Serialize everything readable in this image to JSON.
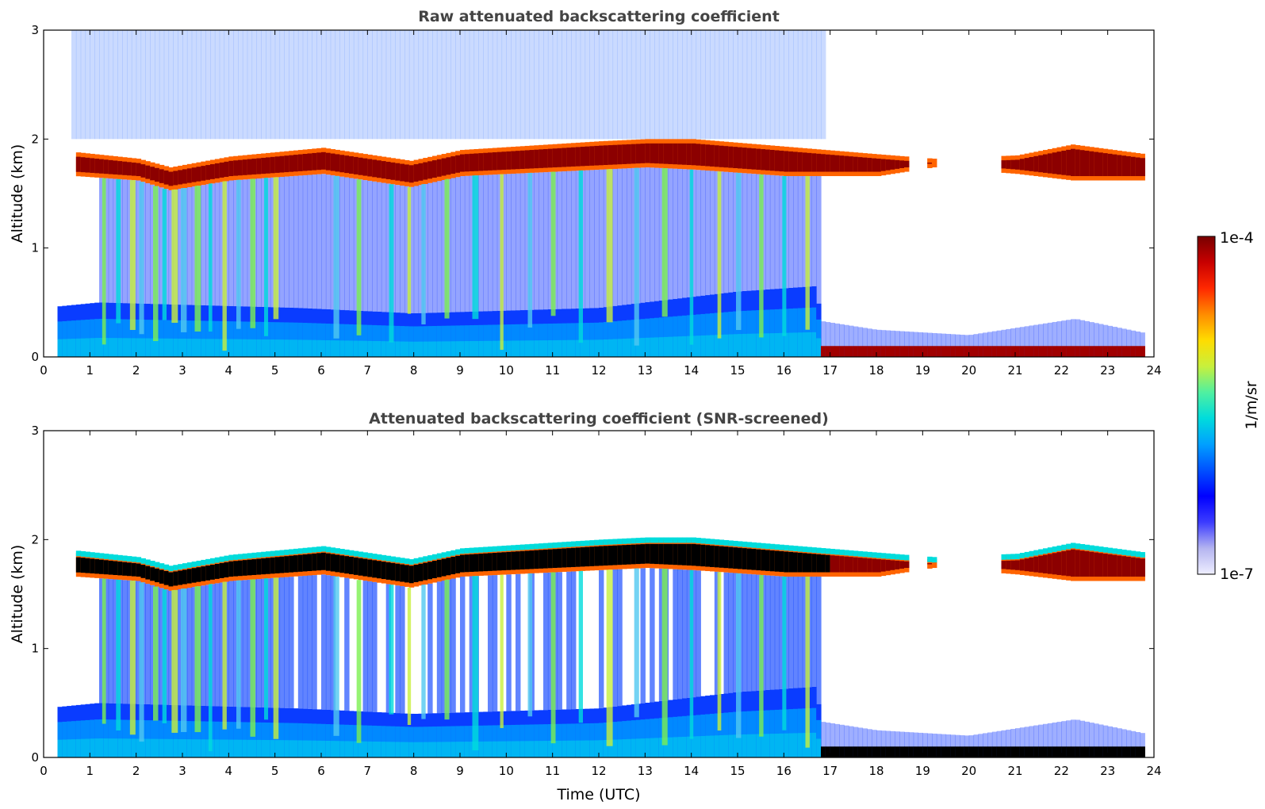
{
  "chart_data": [
    {
      "type": "heatmap",
      "title": "Raw attenuated backscattering coefficient",
      "xlabel": "",
      "ylabel": "Altitude (km)",
      "xlim": [
        0,
        24
      ],
      "ylim": [
        0,
        3
      ],
      "xticks": [
        "0",
        "1",
        "2",
        "3",
        "4",
        "5",
        "6",
        "7",
        "8",
        "9",
        "10",
        "11",
        "12",
        "13",
        "14",
        "15",
        "16",
        "17",
        "18",
        "19",
        "20",
        "21",
        "22",
        "23",
        "24"
      ],
      "yticks": [
        "0",
        "1",
        "2",
        "3"
      ],
      "grid": false,
      "screened": false,
      "features": {
        "cloud_layer_top_km": [
          {
            "t": 0.65,
            "z": 1.88
          },
          {
            "t": 2.0,
            "z": 1.82
          },
          {
            "t": 2.7,
            "z": 1.74
          },
          {
            "t": 4.0,
            "z": 1.84
          },
          {
            "t": 6.0,
            "z": 1.92
          },
          {
            "t": 7.9,
            "z": 1.8
          },
          {
            "t": 9.0,
            "z": 1.9
          },
          {
            "t": 12.0,
            "z": 1.98
          },
          {
            "t": 13.0,
            "z": 2.0
          },
          {
            "t": 14.0,
            "z": 2.0
          },
          {
            "t": 16.0,
            "z": 1.93
          },
          {
            "t": 18.0,
            "z": 1.86
          },
          {
            "t": 19.2,
            "z": 1.82
          },
          {
            "t": 21.0,
            "z": 1.85
          },
          {
            "t": 22.2,
            "z": 1.95
          },
          {
            "t": 23.8,
            "z": 1.86
          }
        ],
        "cloud_layer_base_km": [
          {
            "t": 0.65,
            "z": 1.66
          },
          {
            "t": 2.0,
            "z": 1.62
          },
          {
            "t": 2.7,
            "z": 1.53
          },
          {
            "t": 4.0,
            "z": 1.62
          },
          {
            "t": 6.0,
            "z": 1.68
          },
          {
            "t": 7.9,
            "z": 1.56
          },
          {
            "t": 9.0,
            "z": 1.66
          },
          {
            "t": 12.0,
            "z": 1.72
          },
          {
            "t": 13.0,
            "z": 1.74
          },
          {
            "t": 14.0,
            "z": 1.72
          },
          {
            "t": 16.0,
            "z": 1.66
          },
          {
            "t": 18.0,
            "z": 1.66
          },
          {
            "t": 19.2,
            "z": 1.74
          },
          {
            "t": 21.0,
            "z": 1.68
          },
          {
            "t": 22.2,
            "z": 1.62
          },
          {
            "t": 23.8,
            "z": 1.62
          }
        ],
        "cloud_gaps_utc": [
          [
            0.25,
            0.65
          ],
          [
            18.7,
            19.1
          ],
          [
            19.3,
            20.7
          ]
        ],
        "boundary_layer_top_km": [
          {
            "t": 0.0,
            "z": 0.45
          },
          {
            "t": 1.2,
            "z": 0.5
          },
          {
            "t": 5.5,
            "z": 0.45
          },
          {
            "t": 8.0,
            "z": 0.4
          },
          {
            "t": 12.0,
            "z": 0.45
          },
          {
            "t": 15.0,
            "z": 0.6
          },
          {
            "t": 16.7,
            "z": 0.65
          },
          {
            "t": 16.8,
            "z": 0.33
          },
          {
            "t": 18.0,
            "z": 0.25
          },
          {
            "t": 20.0,
            "z": 0.2
          },
          {
            "t": 22.3,
            "z": 0.35
          },
          {
            "t": 23.8,
            "z": 0.22
          }
        ],
        "precipitation_columns_utc": [
          1.3,
          1.6,
          1.9,
          2.1,
          2.4,
          2.6,
          2.8,
          3.0,
          3.3,
          3.6,
          3.9,
          4.2,
          4.5,
          4.8,
          5.0,
          6.3,
          6.8,
          7.5,
          7.9,
          8.2,
          8.7,
          9.3,
          9.9,
          10.5,
          11.0,
          11.6,
          12.2,
          12.8,
          13.4,
          14.0,
          14.6,
          15.0,
          15.5,
          16.0,
          16.5
        ]
      }
    },
    {
      "type": "heatmap",
      "title": "Attenuated backscattering coefficient (SNR-screened)",
      "xlabel": "Time (UTC)",
      "ylabel": "Altitude (km)",
      "xlim": [
        0,
        24
      ],
      "ylim": [
        0,
        3
      ],
      "xticks": [
        "0",
        "1",
        "2",
        "3",
        "4",
        "5",
        "6",
        "7",
        "8",
        "9",
        "10",
        "11",
        "12",
        "13",
        "14",
        "15",
        "16",
        "17",
        "18",
        "19",
        "20",
        "21",
        "22",
        "23",
        "24"
      ],
      "yticks": [
        "0",
        "1",
        "2",
        "3"
      ],
      "grid": false,
      "screened": true,
      "saturation_color": "#000000"
    }
  ],
  "colorbar": {
    "label": "1/m/sr",
    "max_label": "1e-4",
    "min_label": "1e-7",
    "range": [
      1e-07,
      0.0001
    ],
    "scale": "log",
    "position": "right",
    "colors": [
      "#eeeeff",
      "#b4b4f0",
      "#3c3cff",
      "#0000ff",
      "#0050ff",
      "#00a0ff",
      "#00dcdc",
      "#50f0a0",
      "#c8f03c",
      "#ffdc00",
      "#ff8c00",
      "#ff2800",
      "#c80000",
      "#780000"
    ]
  }
}
